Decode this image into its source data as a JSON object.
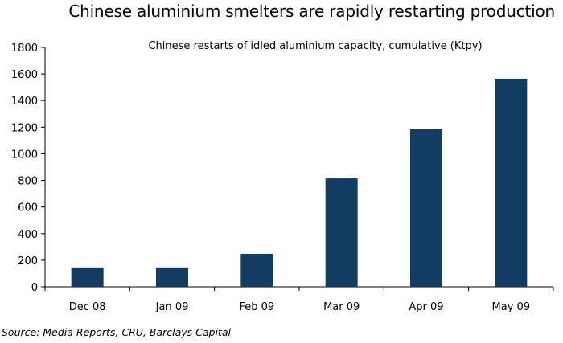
{
  "chart_data": {
    "type": "bar",
    "title": "Chinese aluminium smelters are rapidly restarting production",
    "subtitle": "Chinese restarts of idled aluminium capacity, cumulative (Ktpy)",
    "categories": [
      "Dec 08",
      "Jan 09",
      "Feb 09",
      "Mar 09",
      "Apr 09",
      "May 09"
    ],
    "values": [
      140,
      140,
      248,
      815,
      1185,
      1565
    ],
    "ylim": [
      0,
      1800
    ],
    "yticks": [
      0,
      200,
      400,
      600,
      800,
      1000,
      1200,
      1400,
      1600,
      1800
    ],
    "grid": false,
    "bar_color": "#123d63",
    "source": "Source: Media Reports, CRU, Barclays Capital"
  }
}
